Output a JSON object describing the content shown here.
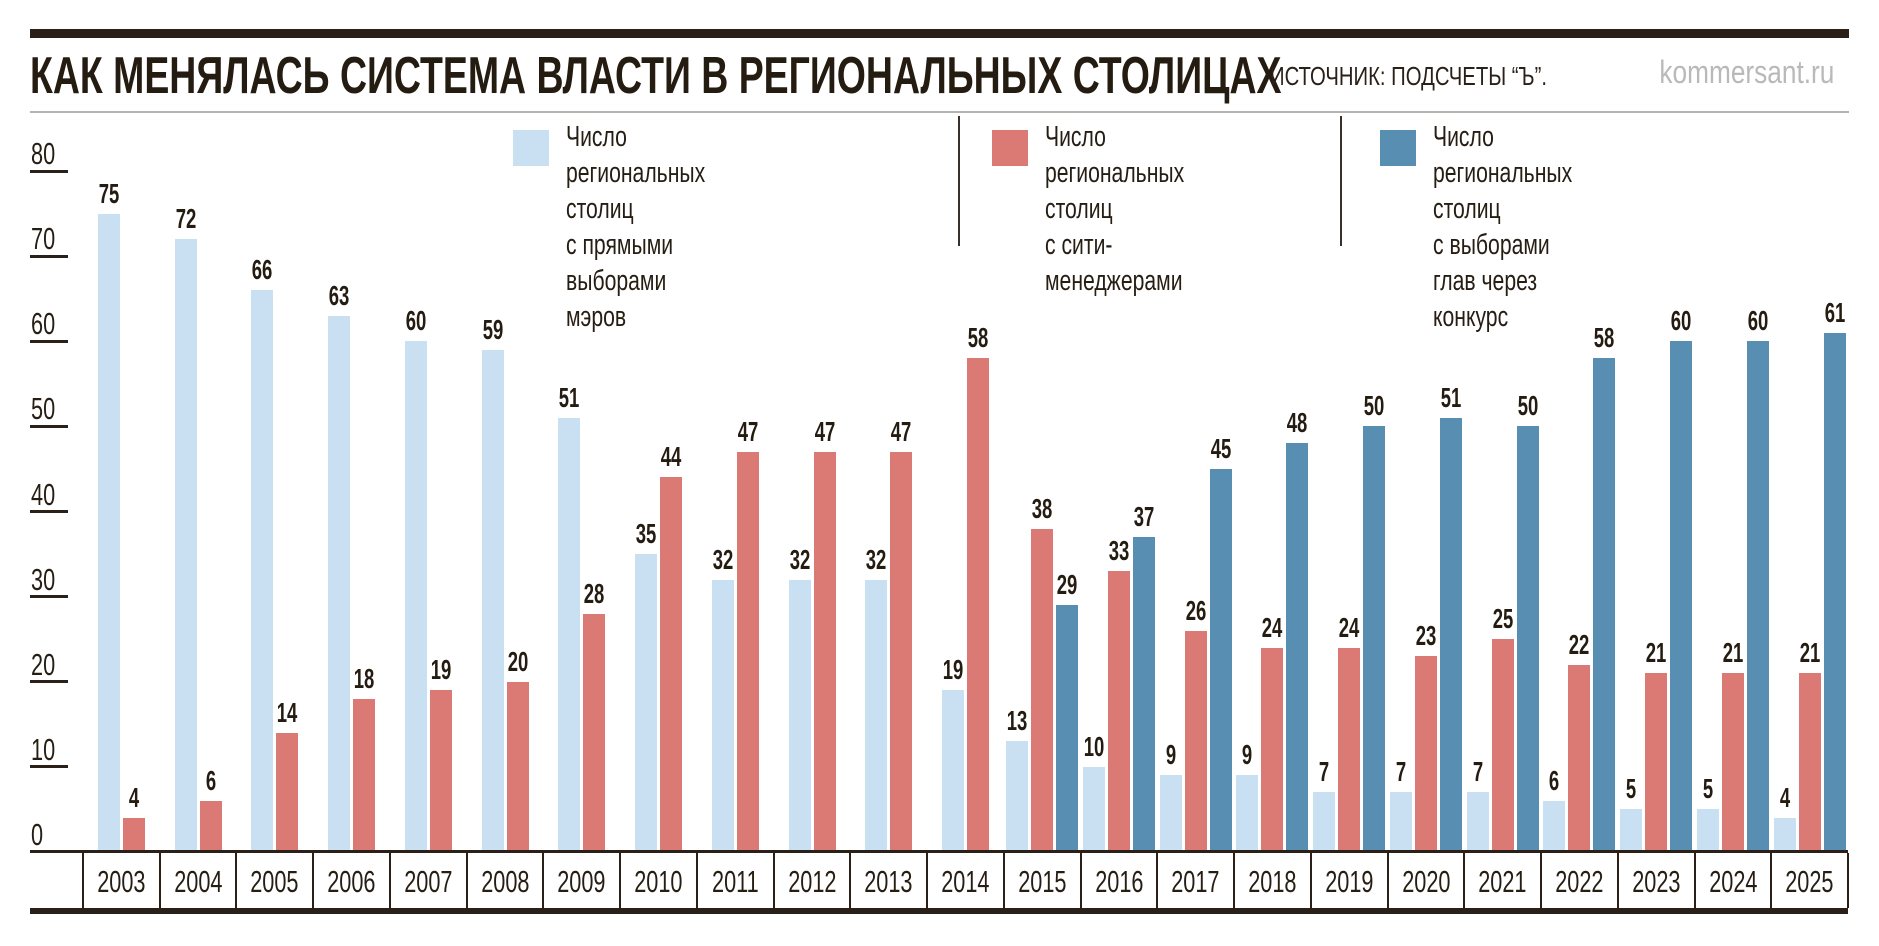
{
  "header": {
    "title": "КАК МЕНЯЛАСЬ СИСТЕМА ВЛАСТИ В РЕГИОНАЛЬНЫХ СТОЛИЦАХ",
    "source": "ИСТОЧНИК: ПОДСЧЕТЫ “Ъ”.",
    "site": "kommersant.ru"
  },
  "colors": {
    "dark_line": "#2a2017",
    "gray_line": "#b9b3ae",
    "site_gray": "#b9b9b9",
    "mayors_blue": "#c9dff2",
    "managers_red": "#db7a75",
    "konkurs_steel": "#578eb1"
  },
  "legend": [
    {
      "id": "mayors",
      "color": "#c9dff2",
      "label": "Число\nрегиональных столиц\nс прямыми выборами мэров"
    },
    {
      "id": "managers",
      "color": "#db7a75",
      "label": "Число\nрегиональных столиц\nс сити-менеджерами"
    },
    {
      "id": "konkurs",
      "color": "#578eb1",
      "label": "Число\nрегиональных столиц\nс выборами глав через конкурс"
    }
  ],
  "chart_data": {
    "type": "bar",
    "title": "КАК МЕНЯЛАСЬ СИСТЕМА ВЛАСТИ В РЕГИОНАЛЬНЫХ СТОЛИЦАХ",
    "source": "ИСТОЧНИК: ПОДСЧЕТЫ “Ъ”.",
    "categories": [
      2003,
      2004,
      2005,
      2006,
      2007,
      2008,
      2009,
      2010,
      2011,
      2012,
      2013,
      2014,
      2015,
      2016,
      2017,
      2018,
      2019,
      2020,
      2021,
      2022,
      2023,
      2024,
      2025
    ],
    "series": [
      {
        "id": "mayors",
        "name": "Число региональных столиц с прямыми выборами мэров",
        "color": "#c9dff2",
        "values": [
          75,
          72,
          66,
          63,
          60,
          59,
          51,
          35,
          32,
          32,
          32,
          19,
          13,
          10,
          9,
          9,
          7,
          7,
          7,
          6,
          5,
          5,
          4
        ]
      },
      {
        "id": "managers",
        "name": "Число региональных столиц с сити-менеджерами",
        "color": "#db7a75",
        "values": [
          4,
          6,
          14,
          18,
          19,
          20,
          28,
          44,
          47,
          47,
          47,
          58,
          38,
          33,
          26,
          24,
          24,
          23,
          25,
          22,
          21,
          21,
          21
        ]
      },
      {
        "id": "konkurs",
        "name": "Число региональных столиц с выборами глав через конкурс",
        "color": "#578eb1",
        "values": [
          null,
          null,
          null,
          null,
          null,
          null,
          null,
          null,
          null,
          null,
          null,
          null,
          29,
          37,
          45,
          48,
          50,
          51,
          50,
          58,
          60,
          60,
          61
        ]
      }
    ],
    "ylim": [
      0,
      80
    ],
    "yticks": [
      0,
      10,
      20,
      30,
      40,
      50,
      60,
      70,
      80
    ],
    "grid": "left-tick-marks-only",
    "legend_position": "top",
    "bar_value_labels": true
  }
}
